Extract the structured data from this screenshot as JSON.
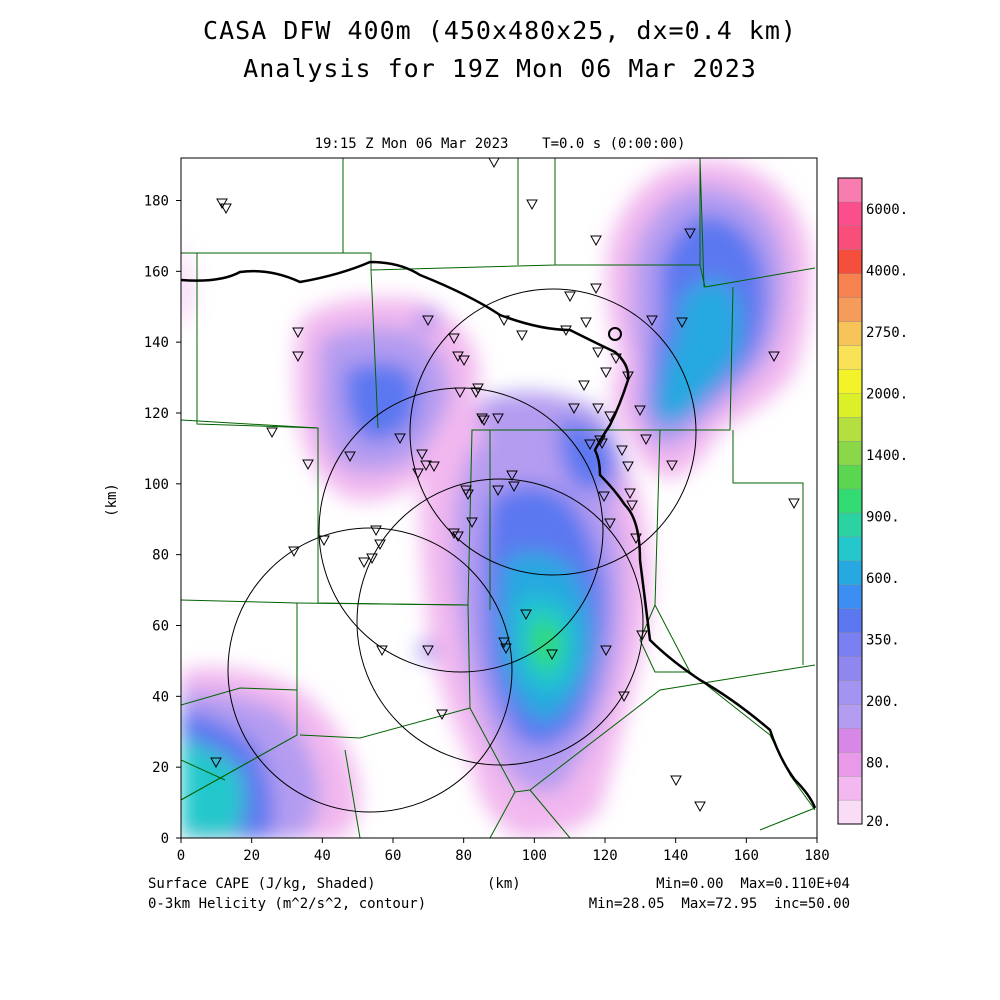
{
  "title_line1": "CASA DFW 400m (450x480x25, dx=0.4 km)",
  "title_line2": "Analysis for 19Z Mon 06 Mar 2023",
  "time_label": "19:15 Z Mon 06 Mar 2023    T=0.0 s (0:00:00)",
  "x_axis": {
    "unit": "(km)",
    "range": [
      0,
      180
    ],
    "ticks": [
      "0",
      "20",
      "40",
      "60",
      "80",
      "100",
      "120",
      "140",
      "160",
      "180"
    ]
  },
  "y_axis": {
    "unit": "(km)",
    "range": [
      0,
      192
    ],
    "ticks": [
      "0",
      "20",
      "40",
      "60",
      "80",
      "100",
      "120",
      "140",
      "160",
      "180"
    ]
  },
  "footer": {
    "left1": "Surface CAPE (J/kg, Shaded)",
    "left2": "0-3km Helicity (m^2/s^2, contour)",
    "right1": "Min=0.00  Max=0.110E+04",
    "right2": "Min=28.05  Max=72.95  inc=50.00"
  },
  "colorbar": {
    "labels": [
      {
        "text": "6000.",
        "index": 19
      },
      {
        "text": "4000.",
        "index": 17
      },
      {
        "text": "2750.",
        "index": 15
      },
      {
        "text": "2000.",
        "index": 13
      },
      {
        "text": "1400.",
        "index": 11
      },
      {
        "text": "900.",
        "index": 9
      },
      {
        "text": "600.",
        "index": 7
      },
      {
        "text": "350.",
        "index": 5
      },
      {
        "text": "200.",
        "index": 3
      },
      {
        "text": "80.",
        "index": 1
      },
      {
        "text": "20.",
        "index": -1
      }
    ],
    "colors": [
      "#fbdcf6",
      "#f2b8ef",
      "#e89ae8",
      "#d788e6",
      "#b49cf0",
      "#a394f2",
      "#8f86f0",
      "#7a80f2",
      "#5c78f0",
      "#3c8ff0",
      "#27a8e0",
      "#23c7cc",
      "#2bd3a3",
      "#32dc73",
      "#5ad650",
      "#8ad84a",
      "#b4df40",
      "#dcf02a",
      "#f4f32a",
      "#f7e355",
      "#f7c45a",
      "#f59c5a",
      "#f6824f",
      "#f54e3c",
      "#fa4e7a",
      "#fb4f8d",
      "#f77db0"
    ]
  },
  "map_layers": {
    "cape_field": "surface CAPE shaded: maxima near (106,55) and (15,20) km",
    "helicity_contours": "0-3km helicity circles around radar sites"
  },
  "colors": {
    "county_lines": "#006400",
    "river": "#000000",
    "range_rings": "#000000"
  }
}
